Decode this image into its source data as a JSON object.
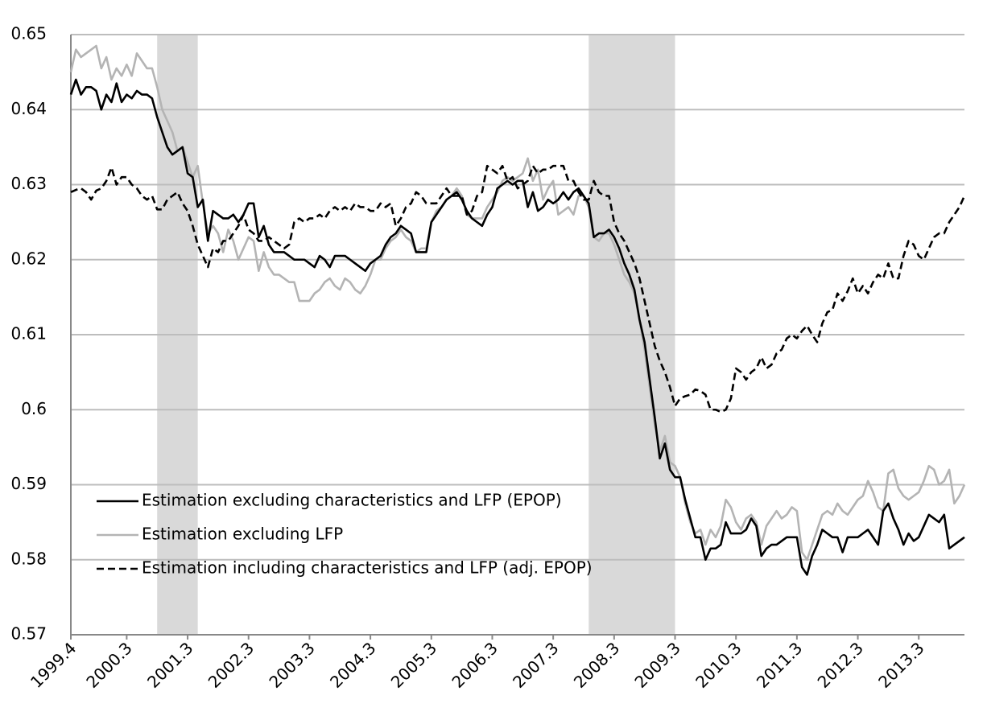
{
  "chart_data": {
    "type": "line",
    "categories": [
      "1999.4",
      null,
      null,
      null,
      null,
      null,
      null,
      null,
      null,
      null,
      null,
      "2000.3",
      null,
      null,
      null,
      null,
      null,
      null,
      null,
      null,
      null,
      null,
      null,
      "2001.3",
      null,
      null,
      null,
      null,
      null,
      null,
      null,
      null,
      null,
      null,
      null,
      "2002.3",
      null,
      null,
      null,
      null,
      null,
      null,
      null,
      null,
      null,
      null,
      null,
      "2003.3",
      null,
      null,
      null,
      null,
      null,
      null,
      null,
      null,
      null,
      null,
      null,
      "2004.3",
      null,
      null,
      null,
      null,
      null,
      null,
      null,
      null,
      null,
      null,
      null,
      "2005.3",
      null,
      null,
      null,
      null,
      null,
      null,
      null,
      null,
      null,
      null,
      null,
      "2006.3",
      null,
      null,
      null,
      null,
      null,
      null,
      null,
      null,
      null,
      null,
      null,
      "2007.3",
      null,
      null,
      null,
      null,
      null,
      null,
      null,
      null,
      null,
      null,
      null,
      "2008.3",
      null,
      null,
      null,
      null,
      null,
      null,
      null,
      null,
      null,
      null,
      null,
      "2009.3",
      null,
      null,
      null,
      null,
      null,
      null,
      null,
      null,
      null,
      null,
      null,
      "2010.3",
      null,
      null,
      null,
      null,
      null,
      null,
      null,
      null,
      null,
      null,
      null,
      "2011.3",
      null,
      null,
      null,
      null,
      null,
      null,
      null,
      null,
      null,
      null,
      null,
      "2012.3",
      null,
      null,
      null,
      null,
      null,
      null,
      null,
      null,
      null,
      null,
      null,
      "2013.3",
      null,
      null,
      null,
      null,
      null,
      null,
      null,
      null,
      null
    ],
    "series": [
      {
        "name": "Estimation excluding characteristics and LFP (EPOP)",
        "color": "#000000",
        "dash": false,
        "values": [
          0.642,
          0.644,
          0.642,
          0.643,
          0.643,
          0.6425,
          0.64,
          0.642,
          0.641,
          0.6435,
          0.641,
          0.642,
          0.6415,
          0.6425,
          0.642,
          0.642,
          0.6415,
          0.639,
          0.637,
          0.635,
          0.634,
          0.6345,
          0.635,
          0.6315,
          0.631,
          0.627,
          0.628,
          0.6225,
          0.6265,
          0.626,
          0.6255,
          0.6255,
          0.626,
          0.625,
          0.626,
          0.6275,
          0.6275,
          0.623,
          0.6245,
          0.622,
          0.621,
          0.621,
          0.621,
          0.6205,
          0.62,
          0.62,
          0.62,
          0.6195,
          0.619,
          0.6205,
          0.62,
          0.619,
          0.6205,
          0.6205,
          0.6205,
          0.62,
          0.6195,
          0.619,
          0.6185,
          0.6195,
          0.62,
          0.6205,
          0.622,
          0.623,
          0.6235,
          0.6245,
          0.624,
          0.6235,
          0.621,
          0.621,
          0.621,
          0.625,
          0.626,
          0.627,
          0.628,
          0.6285,
          0.629,
          0.628,
          0.6265,
          0.6255,
          0.625,
          0.6245,
          0.626,
          0.627,
          0.6295,
          0.63,
          0.6305,
          0.63,
          0.6305,
          0.6305,
          0.627,
          0.629,
          0.6265,
          0.627,
          0.628,
          0.6275,
          0.628,
          0.629,
          0.628,
          0.629,
          0.6295,
          0.6285,
          0.6275,
          0.623,
          0.6235,
          0.6235,
          0.624,
          0.623,
          0.6215,
          0.6195,
          0.618,
          0.616,
          0.612,
          0.609,
          0.604,
          0.599,
          0.5935,
          0.5955,
          0.592,
          0.591,
          0.591,
          0.588,
          0.5855,
          0.583,
          0.583,
          0.58,
          0.5815,
          0.5815,
          0.582,
          0.585,
          0.5835,
          0.5835,
          0.5835,
          0.584,
          0.5855,
          0.5845,
          0.5805,
          0.5815,
          0.582,
          0.582,
          0.5825,
          0.583,
          0.583,
          0.583,
          0.579,
          0.578,
          0.5805,
          0.582,
          0.584,
          0.5835,
          0.583,
          0.583,
          0.581,
          0.583,
          0.583,
          0.583,
          0.5835,
          0.584,
          0.583,
          0.582,
          0.5865,
          0.5875,
          0.5855,
          0.584,
          0.582,
          0.5835,
          0.5825,
          0.583,
          0.5845,
          0.586,
          0.5855,
          0.585,
          0.586,
          0.5815,
          0.582,
          0.5825,
          0.583
        ]
      },
      {
        "name": "Estimation excluding LFP",
        "color": "#b4b4b4",
        "dash": false,
        "values": [
          0.645,
          0.648,
          0.647,
          0.6475,
          0.648,
          0.6485,
          0.6455,
          0.647,
          0.644,
          0.6455,
          0.6445,
          0.646,
          0.6445,
          0.6475,
          0.6465,
          0.6455,
          0.6455,
          0.643,
          0.64,
          0.6385,
          0.637,
          0.6345,
          0.635,
          0.633,
          0.631,
          0.6325,
          0.6275,
          0.6235,
          0.6245,
          0.6235,
          0.621,
          0.624,
          0.6225,
          0.62,
          0.6215,
          0.623,
          0.6225,
          0.6185,
          0.621,
          0.619,
          0.618,
          0.618,
          0.6175,
          0.617,
          0.617,
          0.6145,
          0.6145,
          0.6145,
          0.6155,
          0.616,
          0.617,
          0.6175,
          0.6165,
          0.616,
          0.6175,
          0.617,
          0.616,
          0.6155,
          0.6165,
          0.618,
          0.62,
          0.62,
          0.6215,
          0.6225,
          0.623,
          0.624,
          0.623,
          0.6225,
          0.621,
          0.6215,
          0.6215,
          0.625,
          0.6265,
          0.627,
          0.628,
          0.6285,
          0.6295,
          0.6285,
          0.626,
          0.6255,
          0.6255,
          0.6255,
          0.627,
          0.628,
          0.629,
          0.6305,
          0.631,
          0.6305,
          0.631,
          0.6315,
          0.6335,
          0.6305,
          0.632,
          0.628,
          0.6295,
          0.6305,
          0.626,
          0.6265,
          0.627,
          0.626,
          0.6285,
          0.6285,
          0.627,
          0.623,
          0.6225,
          0.6235,
          0.6235,
          0.622,
          0.62,
          0.618,
          0.617,
          0.6155,
          0.612,
          0.608,
          0.603,
          0.598,
          0.5945,
          0.5965,
          0.593,
          0.5925,
          0.591,
          0.5875,
          0.585,
          0.5835,
          0.584,
          0.582,
          0.584,
          0.583,
          0.5845,
          0.588,
          0.587,
          0.585,
          0.584,
          0.5855,
          0.586,
          0.585,
          0.582,
          0.5845,
          0.5855,
          0.5865,
          0.5855,
          0.586,
          0.587,
          0.5865,
          0.581,
          0.58,
          0.582,
          0.584,
          0.586,
          0.5865,
          0.586,
          0.5875,
          0.5865,
          0.586,
          0.587,
          0.588,
          0.5885,
          0.5905,
          0.589,
          0.587,
          0.5865,
          0.5915,
          0.592,
          0.5895,
          0.5885,
          0.588,
          0.5885,
          0.589,
          0.5905,
          0.5925,
          0.592,
          0.59,
          0.5905,
          0.592,
          0.5875,
          0.5885,
          0.59
        ]
      },
      {
        "name": "Estimation including characteristics and LFP (adj. EPOP)",
        "color": "#000000",
        "dash": true,
        "values": [
          0.629,
          0.6293,
          0.6295,
          0.629,
          0.628,
          0.6292,
          0.6295,
          0.6305,
          0.6323,
          0.63,
          0.631,
          0.631,
          0.63,
          0.6295,
          0.6285,
          0.628,
          0.6285,
          0.6267,
          0.6267,
          0.628,
          0.6285,
          0.629,
          0.6275,
          0.6265,
          0.6245,
          0.622,
          0.6205,
          0.619,
          0.6215,
          0.621,
          0.6225,
          0.6225,
          0.6235,
          0.6245,
          0.626,
          0.624,
          0.6235,
          0.6225,
          0.6225,
          0.623,
          0.6225,
          0.622,
          0.6215,
          0.622,
          0.625,
          0.6255,
          0.625,
          0.6255,
          0.6255,
          0.626,
          0.6255,
          0.6265,
          0.627,
          0.6265,
          0.627,
          0.6265,
          0.6275,
          0.627,
          0.627,
          0.6265,
          0.6265,
          0.6275,
          0.627,
          0.6275,
          0.6245,
          0.6255,
          0.627,
          0.6275,
          0.629,
          0.6285,
          0.6275,
          0.6275,
          0.6275,
          0.6285,
          0.6295,
          0.6285,
          0.6285,
          0.6285,
          0.626,
          0.6265,
          0.6285,
          0.629,
          0.6325,
          0.632,
          0.6315,
          0.6325,
          0.6305,
          0.631,
          0.6295,
          0.63,
          0.6305,
          0.6325,
          0.6315,
          0.632,
          0.632,
          0.6325,
          0.6325,
          0.6325,
          0.6305,
          0.6305,
          0.629,
          0.628,
          0.628,
          0.6305,
          0.629,
          0.6285,
          0.6285,
          0.625,
          0.6235,
          0.6225,
          0.621,
          0.6195,
          0.6175,
          0.6145,
          0.6115,
          0.6085,
          0.6065,
          0.605,
          0.603,
          0.6005,
          0.6015,
          0.6018,
          0.602,
          0.6027,
          0.6025,
          0.602,
          0.6,
          0.6,
          0.5997,
          0.6,
          0.6015,
          0.6055,
          0.605,
          0.604,
          0.605,
          0.6055,
          0.607,
          0.6055,
          0.606,
          0.6075,
          0.608,
          0.6095,
          0.61,
          0.6095,
          0.6105,
          0.6112,
          0.61,
          0.609,
          0.6115,
          0.613,
          0.6133,
          0.6155,
          0.6145,
          0.6158,
          0.6175,
          0.6155,
          0.6165,
          0.6155,
          0.617,
          0.618,
          0.6175,
          0.6195,
          0.6175,
          0.6175,
          0.6205,
          0.6225,
          0.622,
          0.6205,
          0.62,
          0.6215,
          0.623,
          0.6235,
          0.6235,
          0.625,
          0.626,
          0.627,
          0.6285
        ]
      }
    ],
    "shaded_ranges": [
      [
        17,
        25
      ],
      [
        102,
        119
      ]
    ],
    "ylim": [
      0.57,
      0.65
    ],
    "yticks": [
      0.57,
      0.58,
      0.59,
      0.6,
      0.61,
      0.62,
      0.63,
      0.64,
      0.65
    ],
    "grid": true,
    "legend": "lower left"
  }
}
